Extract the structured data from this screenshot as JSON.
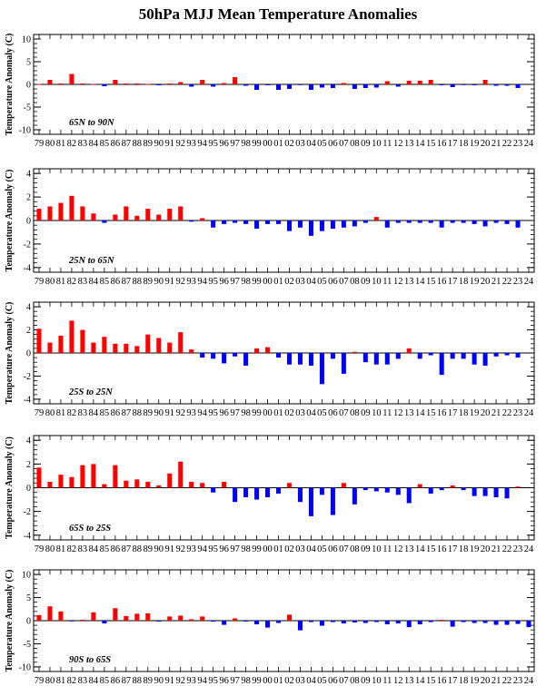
{
  "title": "50hPa MJJ Mean Temperature Anomalies",
  "colors": {
    "positive": "#ff0000",
    "negative": "#0000ff",
    "axis": "#000000",
    "zero_line": "#000000"
  },
  "chart_data": [
    {
      "type": "bar",
      "region": "65N to 90N",
      "ylabel": "Temperature Anomaly (C)",
      "ylim": [
        -11,
        11
      ],
      "yticks": [
        -10,
        -5,
        0,
        5,
        10
      ],
      "categories": [
        "79",
        "80",
        "81",
        "82",
        "83",
        "84",
        "85",
        "86",
        "87",
        "88",
        "89",
        "90",
        "91",
        "92",
        "93",
        "94",
        "95",
        "96",
        "97",
        "98",
        "99",
        "00",
        "01",
        "02",
        "03",
        "04",
        "05",
        "06",
        "07",
        "08",
        "09",
        "10",
        "11",
        "12",
        "13",
        "14",
        "15",
        "16",
        "17",
        "18",
        "19",
        "20",
        "21",
        "22",
        "23",
        "24"
      ],
      "values": [
        0.1,
        1.0,
        0.2,
        2.3,
        0.2,
        0.1,
        -0.4,
        1.0,
        0.2,
        0.2,
        0.1,
        -0.2,
        0.2,
        0.5,
        -0.5,
        1.0,
        -0.5,
        0.3,
        1.6,
        -0.3,
        -1.2,
        -0.2,
        -1.2,
        -1.0,
        -0.1,
        -1.2,
        -0.7,
        -0.8,
        0.3,
        -1.0,
        -0.8,
        -0.7,
        0.7,
        -0.5,
        0.8,
        0.8,
        1.0,
        -0.2,
        -0.6,
        -0.1,
        -0.2,
        1.0,
        -0.3,
        -0.3,
        -0.8,
        null
      ]
    },
    {
      "type": "bar",
      "region": "25N to 65N",
      "ylabel": "Temperature Anomaly (C)",
      "ylim": [
        -4.4,
        4.4
      ],
      "yticks": [
        -4,
        -2,
        0,
        2,
        4
      ],
      "categories": [
        "79",
        "80",
        "81",
        "82",
        "83",
        "84",
        "85",
        "86",
        "87",
        "88",
        "89",
        "90",
        "91",
        "92",
        "93",
        "94",
        "95",
        "96",
        "97",
        "98",
        "99",
        "00",
        "01",
        "02",
        "03",
        "04",
        "05",
        "06",
        "07",
        "08",
        "09",
        "10",
        "11",
        "12",
        "13",
        "14",
        "15",
        "16",
        "17",
        "18",
        "19",
        "20",
        "21",
        "22",
        "23",
        "24"
      ],
      "values": [
        1.0,
        1.2,
        1.5,
        2.1,
        1.2,
        0.6,
        -0.2,
        0.5,
        1.2,
        0.4,
        1.0,
        0.5,
        1.0,
        1.2,
        -0.1,
        0.2,
        -0.6,
        -0.3,
        -0.2,
        -0.3,
        -0.7,
        -0.3,
        -0.3,
        -0.9,
        -0.6,
        -1.3,
        -0.9,
        -0.7,
        -0.6,
        -0.5,
        -0.2,
        0.3,
        -0.6,
        -0.2,
        -0.2,
        -0.2,
        -0.2,
        -0.6,
        -0.2,
        -0.2,
        -0.3,
        -0.5,
        -0.2,
        -0.3,
        -0.6,
        null
      ]
    },
    {
      "type": "bar",
      "region": "25S to 25N",
      "ylabel": "Temperature Anomaly (C)",
      "ylim": [
        -4.4,
        4.4
      ],
      "yticks": [
        -4,
        -2,
        0,
        2,
        4
      ],
      "categories": [
        "79",
        "80",
        "81",
        "82",
        "83",
        "84",
        "85",
        "86",
        "87",
        "88",
        "89",
        "90",
        "91",
        "92",
        "93",
        "94",
        "95",
        "96",
        "97",
        "98",
        "99",
        "00",
        "01",
        "02",
        "03",
        "04",
        "05",
        "06",
        "07",
        "08",
        "09",
        "10",
        "11",
        "12",
        "13",
        "14",
        "15",
        "16",
        "17",
        "18",
        "19",
        "20",
        "21",
        "22",
        "23",
        "24"
      ],
      "values": [
        2.1,
        0.9,
        1.5,
        2.8,
        2.0,
        0.9,
        1.4,
        0.8,
        0.8,
        0.6,
        1.6,
        1.3,
        0.9,
        1.8,
        0.3,
        -0.4,
        -0.5,
        -0.9,
        -0.3,
        -1.1,
        0.4,
        0.5,
        -0.4,
        -1.0,
        -1.0,
        -1.1,
        -2.7,
        -0.5,
        -1.8,
        0.1,
        -0.8,
        -1.0,
        -1.0,
        -0.5,
        0.4,
        -0.5,
        -0.2,
        -1.9,
        -0.5,
        -0.5,
        -1.0,
        -1.1,
        -0.3,
        -0.2,
        -0.4,
        null
      ]
    },
    {
      "type": "bar",
      "region": "65S to 25S",
      "ylabel": "Temperature Anomaly (C)",
      "ylim": [
        -4.4,
        4.4
      ],
      "yticks": [
        -4,
        -2,
        0,
        2,
        4
      ],
      "categories": [
        "79",
        "80",
        "81",
        "82",
        "83",
        "84",
        "85",
        "86",
        "87",
        "88",
        "89",
        "90",
        "91",
        "92",
        "93",
        "94",
        "95",
        "96",
        "97",
        "98",
        "99",
        "00",
        "01",
        "02",
        "03",
        "04",
        "05",
        "06",
        "07",
        "08",
        "09",
        "10",
        "11",
        "12",
        "13",
        "14",
        "15",
        "16",
        "17",
        "18",
        "19",
        "20",
        "21",
        "22",
        "23",
        "24"
      ],
      "values": [
        1.7,
        0.5,
        1.1,
        0.9,
        1.9,
        2.0,
        0.3,
        1.9,
        0.6,
        0.7,
        0.5,
        0.2,
        1.2,
        2.2,
        0.5,
        0.4,
        -0.4,
        0.5,
        -1.2,
        -0.8,
        -1.0,
        -0.8,
        -0.5,
        0.4,
        -1.2,
        -2.4,
        -0.6,
        -2.3,
        0.4,
        -1.4,
        -0.2,
        -0.3,
        -0.4,
        -0.6,
        -1.3,
        0.3,
        -0.5,
        -0.2,
        0.2,
        -0.2,
        -0.7,
        -0.7,
        -0.8,
        -0.9,
        0.1,
        null
      ]
    },
    {
      "type": "bar",
      "region": "90S to 65S",
      "ylabel": "Temperature Anomaly (C)",
      "ylim": [
        -11,
        11
      ],
      "yticks": [
        -10,
        -5,
        0,
        5,
        10
      ],
      "categories": [
        "79",
        "80",
        "81",
        "82",
        "83",
        "84",
        "85",
        "86",
        "87",
        "88",
        "89",
        "90",
        "91",
        "92",
        "93",
        "94",
        "95",
        "96",
        "97",
        "98",
        "99",
        "00",
        "01",
        "02",
        "03",
        "04",
        "05",
        "06",
        "07",
        "08",
        "09",
        "10",
        "11",
        "12",
        "13",
        "14",
        "15",
        "16",
        "17",
        "18",
        "19",
        "20",
        "21",
        "22",
        "23",
        "24"
      ],
      "values": [
        1.2,
        3.1,
        2.0,
        -0.1,
        0.2,
        1.8,
        -0.6,
        2.7,
        1.0,
        1.5,
        1.6,
        -0.2,
        0.9,
        1.1,
        0.3,
        0.9,
        -0.2,
        -0.9,
        0.5,
        -0.2,
        -0.8,
        -1.5,
        -0.5,
        1.3,
        -2.1,
        -0.3,
        -1.1,
        -0.3,
        -0.6,
        -0.4,
        -0.5,
        -0.3,
        -0.8,
        -0.6,
        -1.4,
        -0.8,
        -0.3,
        0.2,
        -1.3,
        -0.3,
        -0.5,
        -0.5,
        -0.9,
        -0.9,
        -0.7,
        -1.4
      ]
    }
  ]
}
